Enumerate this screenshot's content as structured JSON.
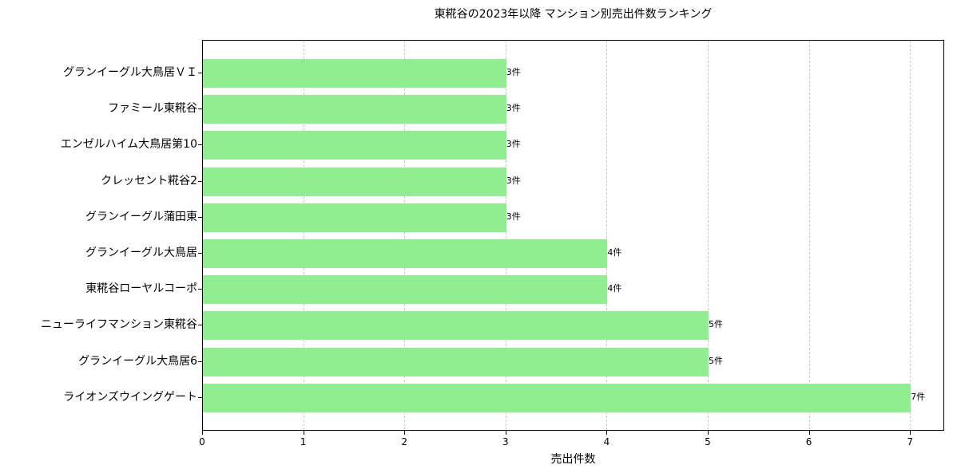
{
  "chart_data": {
    "type": "bar",
    "orientation": "horizontal",
    "title": "東糀谷の2023年以降 マンション別売出件数ランキング",
    "xlabel": "売出件数",
    "ylabel": "",
    "xlim": [
      0,
      7.33
    ],
    "x_ticks": [
      "0",
      "1",
      "2",
      "3",
      "4",
      "5",
      "6",
      "7"
    ],
    "grid": {
      "x": true,
      "y": false,
      "style": "dashed"
    },
    "bar_color": "#90ee90",
    "categories": [
      "グランイーグル大鳥居ＶＩ",
      "ファミール東糀谷",
      "エンゼルハイム大鳥居第10",
      "クレッセント糀谷2",
      "グランイーグル蒲田東",
      "グランイーグル大鳥居",
      "東糀谷ローヤルコーポ",
      "ニューライフマンション東糀谷",
      "グランイーグル大鳥居6",
      "ライオンズウイングゲート"
    ],
    "values": [
      3,
      3,
      3,
      3,
      3,
      4,
      4,
      5,
      5,
      7
    ],
    "data_labels": [
      "3件",
      "3件",
      "3件",
      "3件",
      "3件",
      "4件",
      "4件",
      "5件",
      "5件",
      "7件"
    ],
    "category_display_labels": [
      "グランイーグル大鳥居ＶＩ",
      "ファミール東糀谷",
      "エンゼルハイム大鳥居第10",
      "クレッセント糀谷2",
      "グランイーグル蒲田東",
      "グランイーグル大鳥居",
      "東糀谷ローヤルコーポ",
      "ニューライフマンション東糀谷",
      "グランイーグル大鳥居6",
      "ライオンズウイングゲート"
    ]
  }
}
